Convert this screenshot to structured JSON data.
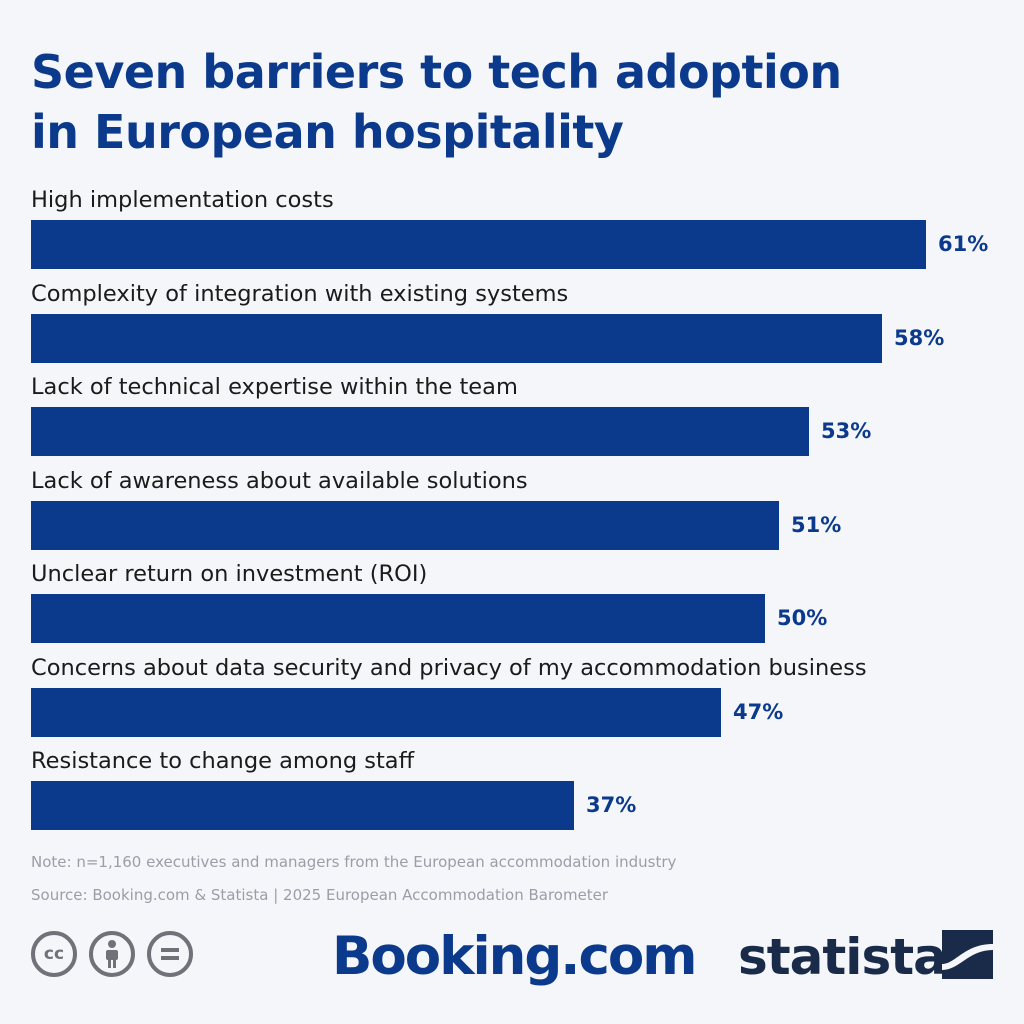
{
  "header": {
    "title_line1": "Seven barriers to tech adoption",
    "title_line2": "in European hospitality"
  },
  "colors": {
    "bar": "#0b3a8c",
    "value_text": "#0b3a8c",
    "label_text": "#1b1b1b",
    "footnote_text": "#9a9ea6",
    "background": "#f4f6f9"
  },
  "chart_data": {
    "type": "bar",
    "orientation": "horizontal",
    "title": "Seven barriers to tech adoption in European hospitality",
    "categories": [
      "High implementation costs",
      "Complexity of integration with existing systems",
      "Lack of technical expertise within the team",
      "Lack of awareness about available solutions",
      "Unclear return on investment (ROI)",
      "Concerns about data security and privacy of my accommodation business",
      "Resistance to change among staff"
    ],
    "values": [
      61,
      58,
      53,
      51,
      50,
      47,
      37
    ],
    "value_labels": [
      "61%",
      "58%",
      "53%",
      "51%",
      "50%",
      "47%",
      "37%"
    ],
    "unit": "%",
    "xlim": [
      0,
      61
    ],
    "grid": false,
    "legend": "none"
  },
  "footer": {
    "note": "Note: n=1,160 executives and managers from the European accommodation industry",
    "source": "Source: Booking.com & Statista | 2025 European Accommodation Barometer",
    "cc_icons": [
      "cc-icon",
      "by-person-icon",
      "nd-equals-icon"
    ],
    "cc_text": "cc",
    "brand_booking": "Booking.com",
    "brand_statista": "statista"
  }
}
